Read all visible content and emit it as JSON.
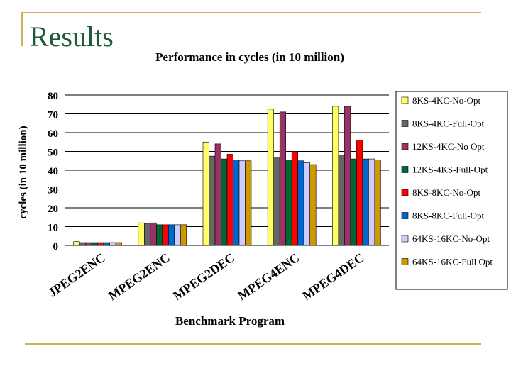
{
  "slide": {
    "title": "Results"
  },
  "chart_data": {
    "type": "bar",
    "title": "Performance in cycles (in 10 million)",
    "xlabel": "Benchmark Program",
    "ylabel": "cycles (in 10 million)",
    "ylim": [
      0,
      80
    ],
    "yticks": [
      0,
      10,
      20,
      30,
      40,
      50,
      60,
      70,
      80
    ],
    "grid": true,
    "legend_position": "right",
    "categories": [
      "JPEG2ENC",
      "MPEG2ENC",
      "MPEG2DEC",
      "MPEG4ENC",
      "MPEG4DEC"
    ],
    "series": [
      {
        "name": "8KS-4KC-No-Opt",
        "color": "#ffff66",
        "values": [
          2,
          12,
          55,
          72.5,
          74
        ]
      },
      {
        "name": "8KS-4KC-Full-Opt",
        "color": "#666666",
        "values": [
          1.5,
          11.5,
          47.5,
          47,
          48
        ]
      },
      {
        "name": "12KS-4KC-No Opt",
        "color": "#993366",
        "values": [
          1.5,
          12,
          54,
          71,
          74
        ]
      },
      {
        "name": "12KS-4KS-Full-Opt",
        "color": "#006633",
        "values": [
          1.5,
          11,
          46,
          45.5,
          46
        ]
      },
      {
        "name": "8KS-8KC-No-Opt",
        "color": "#ff0000",
        "values": [
          1.5,
          11,
          48.5,
          50,
          56
        ]
      },
      {
        "name": "8KS-8KC-Full-Opt",
        "color": "#0066cc",
        "values": [
          1.5,
          11,
          45.5,
          45,
          46
        ]
      },
      {
        "name": "64KS-16KC-No-Opt",
        "color": "#ccccff",
        "values": [
          1.5,
          11,
          45,
          44,
          46
        ]
      },
      {
        "name": "64KS-16KC-Full Opt",
        "color": "#cc9900",
        "values": [
          1.5,
          11,
          45,
          43,
          45.5
        ]
      }
    ]
  }
}
